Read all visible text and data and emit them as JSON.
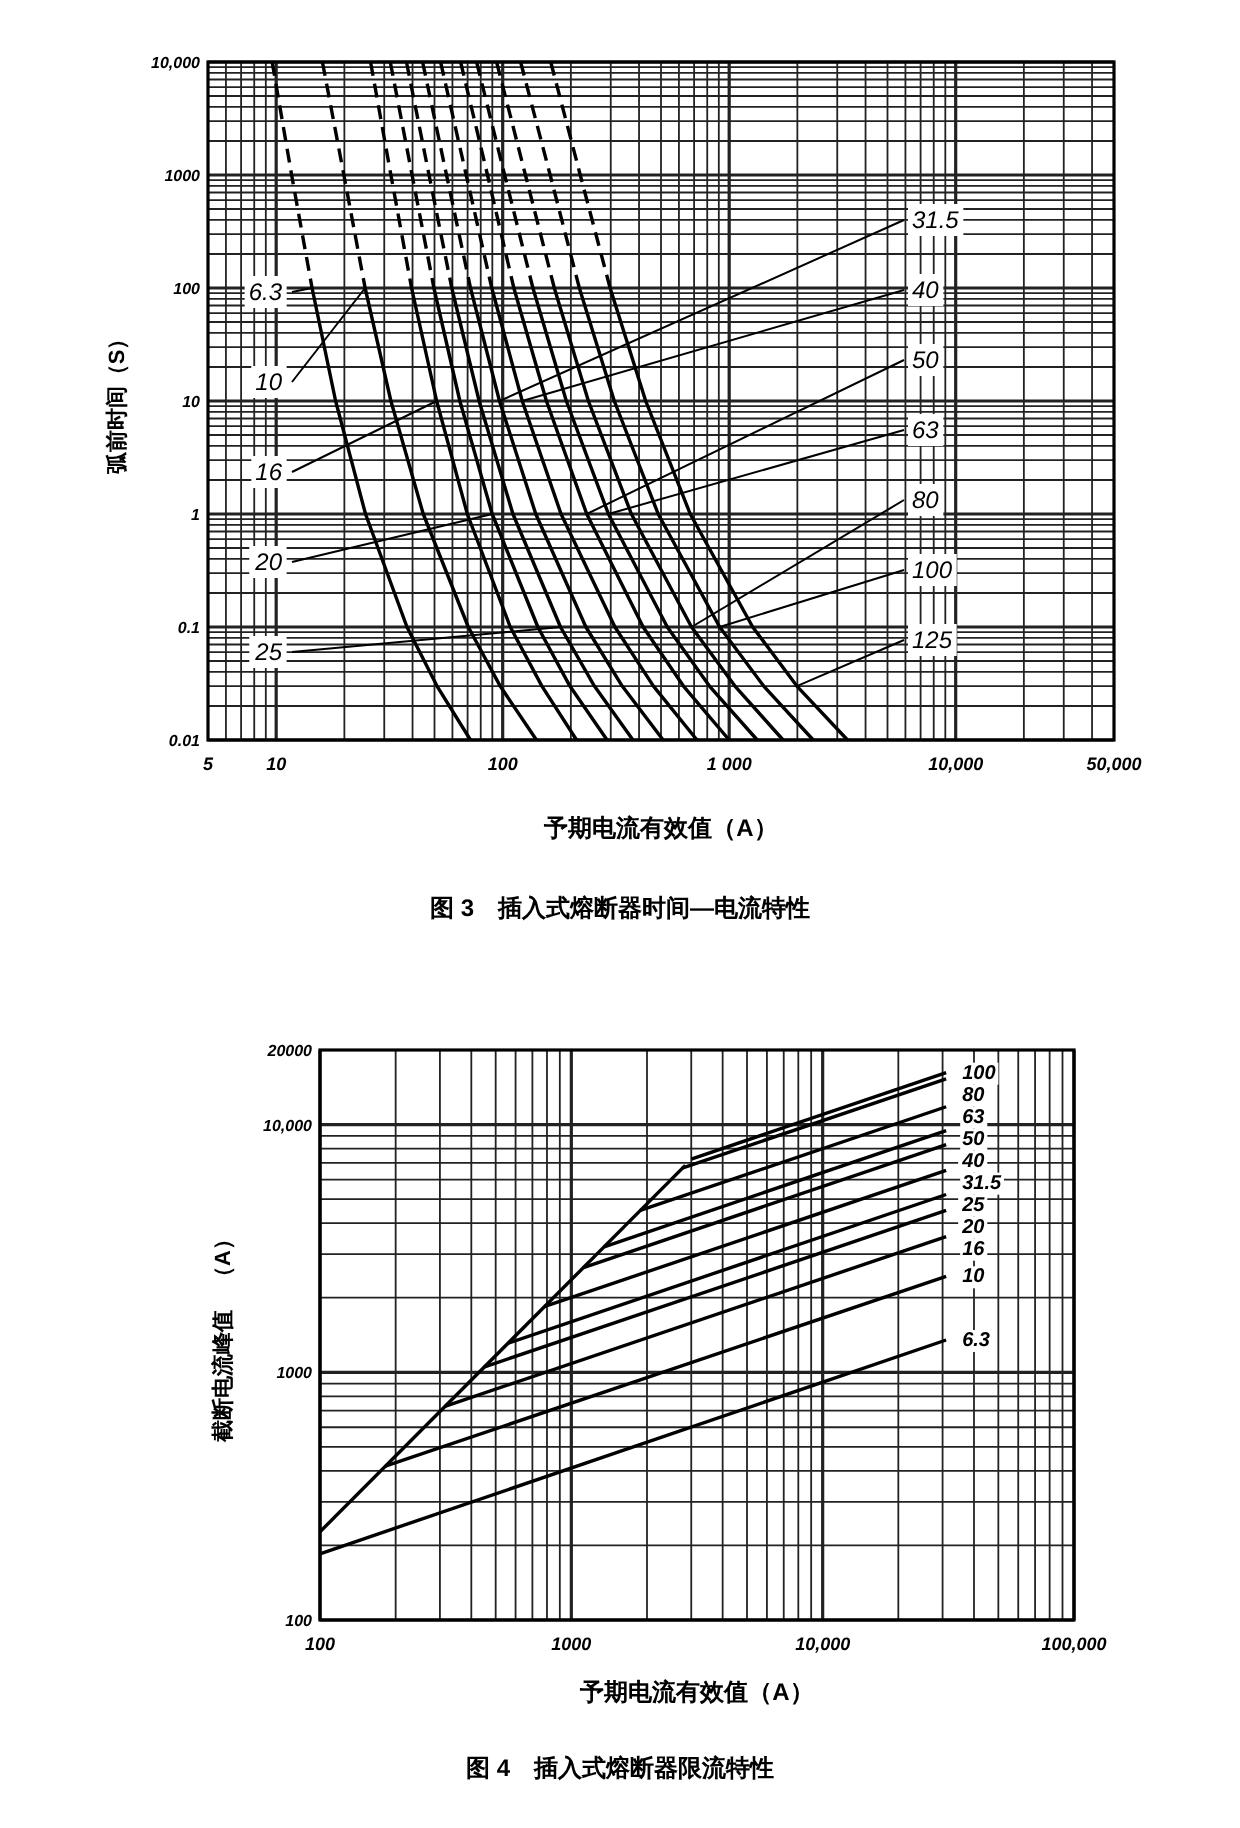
{
  "chart_data": [
    {
      "type": "line",
      "title": "图 3　插入式熔断器时间—电流特性",
      "xlabel": "予期电流有效值（A）",
      "ylabel": "弧前时间（S）",
      "log": "xy",
      "grid": true,
      "xlim": [
        5,
        50000
      ],
      "ylim": [
        0.01,
        10000
      ],
      "xticks": [
        5,
        10,
        100,
        {
          "value": 1000,
          "label": "1 000"
        },
        {
          "value": 10000,
          "label": "10,000"
        },
        {
          "value": 50000,
          "label": "50,000"
        }
      ],
      "yticks": [
        0.01,
        0.1,
        1,
        10,
        100,
        1000,
        {
          "value": 10000,
          "label": "10,000"
        }
      ],
      "series": [
        {
          "color": "#000000",
          "line_style": "dashed",
          "x": [
            9.6,
            11.7,
            14.4
          ],
          "values": [
            10000,
            1000,
            100
          ]
        },
        {
          "color": "#000000",
          "line_style": "solid",
          "x": [
            14.4,
            18.3,
            24.8,
            37.8,
            51.3,
            72.1
          ],
          "values": [
            100,
            10,
            1,
            0.1,
            0.03,
            0.01
          ]
        },
        {
          "color": "#000000",
          "line_style": "dashed",
          "x": [
            16.0,
            19.9,
            24.7
          ],
          "values": [
            10000,
            1000,
            100
          ]
        },
        {
          "color": "#000000",
          "line_style": "solid",
          "x": [
            24.7,
            32.1,
            44.6,
            70.5,
            97.5,
            141
          ],
          "values": [
            100,
            10,
            1,
            0.1,
            0.03,
            0.01
          ]
        },
        {
          "color": "#000000",
          "line_style": "dashed",
          "x": [
            26.1,
            32.1,
            39.6
          ],
          "values": [
            10000,
            1000,
            100
          ]
        },
        {
          "color": "#000000",
          "line_style": "solid",
          "x": [
            39.6,
            51.1,
            69.8,
            108,
            149,
            212
          ],
          "values": [
            100,
            10,
            1,
            0.1,
            0.03,
            0.01
          ]
        },
        {
          "color": "#000000",
          "line_style": "dashed",
          "x": [
            31.9,
            39.8,
            49.7
          ],
          "values": [
            10000,
            1000,
            100
          ]
        },
        {
          "color": "#000000",
          "line_style": "solid",
          "x": [
            49.7,
            64.7,
            89.9,
            143,
            198,
            289
          ],
          "values": [
            100,
            10,
            1,
            0.1,
            0.03,
            0.01
          ]
        },
        {
          "color": "#000000",
          "line_style": "dashed",
          "x": [
            37.6,
            47.3,
            59.6
          ],
          "values": [
            10000,
            1000,
            100
          ]
        },
        {
          "color": "#000000",
          "line_style": "solid",
          "x": [
            59.6,
            78.7,
            111,
            180,
            254,
            376
          ],
          "values": [
            100,
            10,
            1,
            0.1,
            0.03,
            0.01
          ]
        },
        {
          "color": "#000000",
          "line_style": "dashed",
          "x": [
            44.3,
            56.5,
            72.1
          ],
          "values": [
            10000,
            1000,
            100
          ]
        },
        {
          "color": "#000000",
          "line_style": "solid",
          "x": [
            72.1,
            96.8,
            140,
            233,
            337,
            511
          ],
          "values": [
            100,
            10,
            1,
            0.1,
            0.03,
            0.01
          ]
        },
        {
          "color": "#000000",
          "line_style": "dashed",
          "x": [
            53.2,
            69.0,
            89.5
          ],
          "values": [
            10000,
            1000,
            100
          ]
        },
        {
          "color": "#000000",
          "line_style": "solid",
          "x": [
            89.5,
            122,
            181,
            313,
            463,
            721
          ],
          "values": [
            100,
            10,
            1,
            0.1,
            0.03,
            0.01
          ]
        },
        {
          "color": "#000000",
          "line_style": "dashed",
          "x": [
            65.2,
            85.7,
            112
          ],
          "values": [
            10000,
            1000,
            100
          ]
        },
        {
          "color": "#000000",
          "line_style": "solid",
          "x": [
            112,
            156,
            235,
            417,
            628,
            1000
          ],
          "values": [
            100,
            10,
            1,
            0.1,
            0.03,
            0.01
          ]
        },
        {
          "color": "#000000",
          "line_style": "dashed",
          "x": [
            76.7,
            102,
            136
          ],
          "values": [
            10000,
            1000,
            100
          ]
        },
        {
          "color": "#000000",
          "line_style": "solid",
          "x": [
            136,
            191,
            293,
            533,
            818,
            1330
          ],
          "values": [
            100,
            10,
            1,
            0.1,
            0.03,
            0.01
          ]
        },
        {
          "color": "#000000",
          "line_style": "dashed",
          "x": [
            94.0,
            126,
            169
          ],
          "values": [
            10000,
            1000,
            100
          ]
        },
        {
          "color": "#000000",
          "line_style": "solid",
          "x": [
            169,
            239,
            370,
            682,
            1060,
            1730
          ],
          "values": [
            100,
            10,
            1,
            0.1,
            0.03,
            0.01
          ]
        },
        {
          "color": "#000000",
          "line_style": "dashed",
          "x": [
            120,
            162,
            218
          ],
          "values": [
            10000,
            1000,
            100
          ]
        },
        {
          "color": "#000000",
          "line_style": "solid",
          "x": [
            218,
            311,
            486,
            908,
            1420,
            2350
          ],
          "values": [
            100,
            10,
            1,
            0.1,
            0.03,
            0.01
          ]
        },
        {
          "color": "#000000",
          "line_style": "dashed",
          "x": [
            163,
            220,
            298
          ],
          "values": [
            10000,
            1000,
            100
          ]
        },
        {
          "color": "#000000",
          "line_style": "solid",
          "x": [
            298,
            428,
            673,
            1270,
            1990,
            3330
          ],
          "values": [
            100,
            10,
            1,
            0.1,
            0.03,
            0.01
          ]
        }
      ],
      "annotations": [
        {
          "text": "6.3",
          "x": 14.4,
          "y": 100
        },
        {
          "text": "10",
          "x": 24.7,
          "y": 100
        },
        {
          "text": "16",
          "x": 51.1,
          "y": 10
        },
        {
          "text": "20",
          "x": 89.9,
          "y": 1
        },
        {
          "text": "25",
          "x": 180,
          "y": 0.1
        },
        {
          "text": "31.5",
          "x": 96.8,
          "y": 10
        },
        {
          "text": "40",
          "x": 122,
          "y": 10
        },
        {
          "text": "50",
          "x": 235,
          "y": 1
        },
        {
          "text": "63",
          "x": 293,
          "y": 1
        },
        {
          "text": "80",
          "x": 682,
          "y": 0.1
        },
        {
          "text": "100",
          "x": 908,
          "y": 0.1
        },
        {
          "text": "125",
          "x": 1990,
          "y": 0.03
        }
      ]
    },
    {
      "type": "line",
      "title": "图 4　插入式熔断器限流特性",
      "xlabel": "予期电流有效值（A）",
      "ylabel": "截断电流峰值　（A）",
      "log": "xy",
      "grid": true,
      "xlim": [
        100,
        100000
      ],
      "ylim": [
        100,
        20000
      ],
      "xticks": [
        100,
        1000,
        {
          "value": 10000,
          "label": "10,000"
        },
        {
          "value": 100000,
          "label": "100,000"
        }
      ],
      "yticks": [
        100,
        1000,
        {
          "value": 10000,
          "label": "10,000"
        },
        20000
      ],
      "series": [
        {
          "color": "#000000",
          "x": [
            100,
            2840
          ],
          "values": [
            227,
            6840
          ]
        },
        {
          "name": "100",
          "color": "#000000",
          "x": [
            3000,
            31000
          ],
          "values": [
            7260,
            16200
          ]
        },
        {
          "name": "80",
          "color": "#000000",
          "x": [
            2760,
            31000
          ],
          "values": [
            6670,
            15300
          ]
        },
        {
          "name": "63",
          "color": "#000000",
          "x": [
            1880,
            31000
          ],
          "values": [
            4500,
            11800
          ]
        },
        {
          "name": "50",
          "color": "#000000",
          "x": [
            1350,
            31000
          ],
          "values": [
            3210,
            9460
          ]
        },
        {
          "name": "40",
          "color": "#000000",
          "x": [
            1110,
            31000
          ],
          "values": [
            2640,
            8300
          ]
        },
        {
          "name": "31.5",
          "color": "#000000",
          "x": [
            780,
            31000
          ],
          "values": [
            1840,
            6530
          ]
        },
        {
          "name": "25",
          "color": "#000000",
          "x": [
            561,
            31000
          ],
          "values": [
            1310,
            5220
          ]
        },
        {
          "name": "20",
          "color": "#000000",
          "x": [
            449,
            31000
          ],
          "values": [
            1050,
            4500
          ]
        },
        {
          "name": "16",
          "color": "#000000",
          "x": [
            314,
            31000
          ],
          "values": [
            729,
            3530
          ]
        },
        {
          "name": "10",
          "color": "#000000",
          "x": [
            182,
            31000
          ],
          "values": [
            418,
            2440
          ]
        },
        {
          "name": "6.3",
          "color": "#000000",
          "x": [
            100,
            31000
          ],
          "values": [
            185,
            1350
          ]
        }
      ]
    }
  ]
}
